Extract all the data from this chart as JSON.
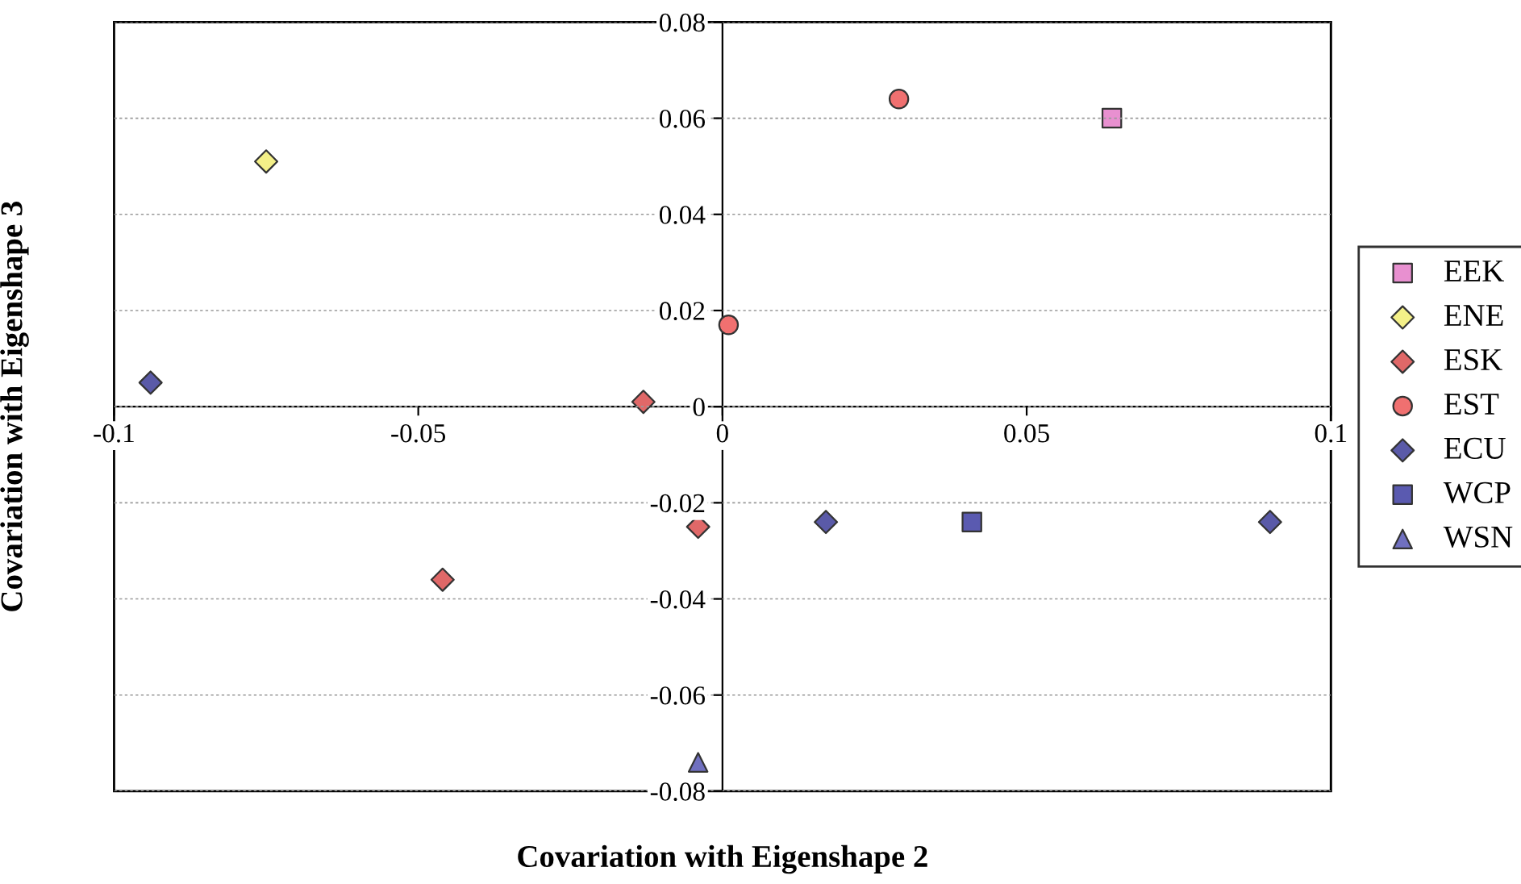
{
  "chart_data": {
    "type": "scatter",
    "xlabel": "Covariation with Eigenshape 2",
    "ylabel": "Covariation with Eigenshape 3",
    "xlim": [
      -0.1,
      0.1
    ],
    "xticks": [
      -0.1,
      -0.05,
      0,
      0.05,
      0.1
    ],
    "ylim": [
      -0.08,
      0.08
    ],
    "yticks": [
      -0.08,
      -0.06,
      -0.04,
      -0.02,
      0,
      0.02,
      0.04,
      0.06,
      0.08
    ],
    "grid": "y",
    "legend": "right",
    "series": [
      {
        "name": "EEK",
        "color": "#e890d0",
        "marker": "square",
        "x": [
          0.064
        ],
        "values": [
          0.06
        ]
      },
      {
        "name": "ENE",
        "color": "#f4f088",
        "marker": "diamond",
        "x": [
          -0.075
        ],
        "values": [
          0.051
        ]
      },
      {
        "name": "ESK",
        "color": "#e06868",
        "marker": "diamond",
        "x": [
          -0.013,
          -0.046,
          -0.004
        ],
        "values": [
          0.001,
          -0.036,
          -0.025
        ]
      },
      {
        "name": "EST",
        "color": "#f07070",
        "marker": "circle",
        "x": [
          0.029,
          0.001
        ],
        "values": [
          0.064,
          0.017
        ]
      },
      {
        "name": "ECU",
        "color": "#5a5aa8",
        "marker": "diamond",
        "x": [
          -0.094,
          0.017,
          0.09
        ],
        "values": [
          0.005,
          -0.024,
          -0.024
        ]
      },
      {
        "name": "WCP",
        "color": "#5a5ab0",
        "marker": "square",
        "x": [
          0.041
        ],
        "values": [
          -0.024
        ]
      },
      {
        "name": "WSN",
        "color": "#7070c0",
        "marker": "triangle",
        "x": [
          -0.004
        ],
        "values": [
          -0.074
        ]
      }
    ]
  }
}
